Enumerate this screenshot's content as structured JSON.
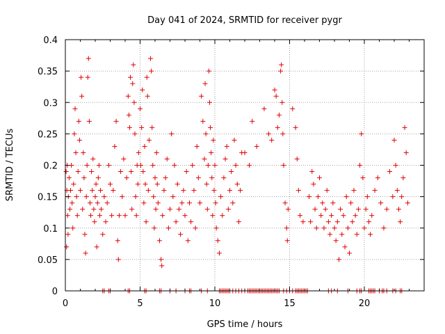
{
  "chart_data": {
    "type": "scatter",
    "title": "Day 041 of 2024, SRMTID for receiver pygr",
    "xlabel": "GPS time / hours",
    "ylabel": "SRMTID / TECUs",
    "xlim": [
      0,
      24
    ],
    "ylim": [
      0,
      0.4
    ],
    "grid": true,
    "marker": "+",
    "color": "#e00000",
    "x_ticks": [
      0,
      5,
      10,
      15,
      20
    ],
    "x_tick_labels": [
      "0",
      "5",
      "10",
      "15",
      "20"
    ],
    "y_ticks": [
      0,
      0.05,
      0.1,
      0.15,
      0.2,
      0.25,
      0.3,
      0.35,
      0.4
    ],
    "y_tick_labels": [
      "0",
      "0.05",
      "0.1",
      "0.15",
      "0.2",
      "0.25",
      "0.3",
      "0.35",
      "0.4"
    ],
    "series": [
      {
        "name": "SRMTID",
        "points": [
          [
            0.05,
            0.19
          ],
          [
            0.08,
            0.07
          ],
          [
            0.1,
            0.16
          ],
          [
            0.12,
            0.2
          ],
          [
            0.15,
            0.12
          ],
          [
            0.18,
            0.09
          ],
          [
            0.2,
            0.15
          ],
          [
            0.25,
            0.18
          ],
          [
            0.3,
            0.13
          ],
          [
            0.35,
            0.16
          ],
          [
            0.4,
            0.2
          ],
          [
            0.45,
            0.14
          ],
          [
            0.5,
            0.1
          ],
          [
            0.55,
            0.17
          ],
          [
            0.6,
            0.25
          ],
          [
            0.65,
            0.29
          ],
          [
            0.7,
            0.22
          ],
          [
            0.75,
            0.15
          ],
          [
            0.8,
            0.12
          ],
          [
            0.85,
            0.19
          ],
          [
            0.9,
            0.27
          ],
          [
            0.95,
            0.24
          ],
          [
            1.0,
            0.16
          ],
          [
            1.05,
            0.34
          ],
          [
            1.1,
            0.31
          ],
          [
            1.15,
            0.13
          ],
          [
            1.2,
            0.22
          ],
          [
            1.25,
            0.18
          ],
          [
            1.3,
            0.09
          ],
          [
            1.35,
            0.06
          ],
          [
            1.4,
            0.15
          ],
          [
            1.45,
            0.2
          ],
          [
            1.5,
            0.34
          ],
          [
            1.55,
            0.37
          ],
          [
            1.6,
            0.27
          ],
          [
            1.65,
            0.14
          ],
          [
            1.7,
            0.12
          ],
          [
            1.75,
            0.19
          ],
          [
            1.8,
            0.16
          ],
          [
            1.85,
            0.21
          ],
          [
            1.9,
            0.13
          ],
          [
            1.95,
            0.11
          ],
          [
            2.0,
            0.15
          ],
          [
            2.05,
            0.17
          ],
          [
            2.1,
            0.07
          ],
          [
            2.15,
            0.14
          ],
          [
            2.2,
            0.18
          ],
          [
            2.25,
            0.2
          ],
          [
            2.3,
            0.12
          ],
          [
            2.35,
            0.16
          ],
          [
            2.4,
            0.13
          ],
          [
            2.5,
            0.09
          ],
          [
            2.6,
            0.15
          ],
          [
            2.7,
            0.11
          ],
          [
            2.8,
            0.14
          ],
          [
            2.9,
            0.2
          ],
          [
            3.0,
            0.17
          ],
          [
            3.1,
            0.12
          ],
          [
            3.2,
            0.16
          ],
          [
            3.3,
            0.23
          ],
          [
            3.4,
            0.27
          ],
          [
            3.5,
            0.08
          ],
          [
            3.55,
            0.05
          ],
          [
            3.6,
            0.12
          ],
          [
            3.7,
            0.19
          ],
          [
            3.8,
            0.15
          ],
          [
            3.9,
            0.21
          ],
          [
            4.0,
            0.12
          ],
          [
            4.1,
            0.18
          ],
          [
            4.2,
            0.31
          ],
          [
            4.25,
            0.28
          ],
          [
            4.3,
            0.26
          ],
          [
            4.35,
            0.34
          ],
          [
            4.4,
            0.19
          ],
          [
            4.45,
            0.13
          ],
          [
            4.5,
            0.33
          ],
          [
            4.55,
            0.36
          ],
          [
            4.6,
            0.3
          ],
          [
            4.65,
            0.25
          ],
          [
            4.7,
            0.15
          ],
          [
            4.75,
            0.12
          ],
          [
            4.8,
            0.2
          ],
          [
            4.85,
            0.17
          ],
          [
            4.9,
            0.22
          ],
          [
            5.0,
            0.29
          ],
          [
            5.05,
            0.2
          ],
          [
            5.1,
            0.26
          ],
          [
            5.15,
            0.32
          ],
          [
            5.2,
            0.19
          ],
          [
            5.25,
            0.14
          ],
          [
            5.3,
            0.23
          ],
          [
            5.35,
            0.17
          ],
          [
            5.4,
            0.11
          ],
          [
            5.45,
            0.34
          ],
          [
            5.5,
            0.31
          ],
          [
            5.55,
            0.16
          ],
          [
            5.6,
            0.24
          ],
          [
            5.7,
            0.37
          ],
          [
            5.75,
            0.35
          ],
          [
            5.8,
            0.26
          ],
          [
            5.85,
            0.2
          ],
          [
            5.9,
            0.15
          ],
          [
            5.95,
            0.1
          ],
          [
            6.0,
            0.18
          ],
          [
            6.05,
            0.13
          ],
          [
            6.1,
            0.22
          ],
          [
            6.15,
            0.17
          ],
          [
            6.2,
            0.14
          ],
          [
            6.3,
            0.08
          ],
          [
            6.4,
            0.05
          ],
          [
            6.45,
            0.04
          ],
          [
            6.5,
            0.12
          ],
          [
            6.6,
            0.16
          ],
          [
            6.7,
            0.18
          ],
          [
            6.8,
            0.21
          ],
          [
            6.9,
            0.1
          ],
          [
            7.0,
            0.13
          ],
          [
            7.1,
            0.25
          ],
          [
            7.2,
            0.15
          ],
          [
            7.3,
            0.2
          ],
          [
            7.4,
            0.11
          ],
          [
            7.5,
            0.17
          ],
          [
            7.6,
            0.13
          ],
          [
            7.7,
            0.09
          ],
          [
            7.8,
            0.14
          ],
          [
            7.9,
            0.16
          ],
          [
            8.0,
            0.12
          ],
          [
            8.1,
            0.19
          ],
          [
            8.2,
            0.08
          ],
          [
            8.3,
            0.14
          ],
          [
            8.4,
            0.11
          ],
          [
            8.5,
            0.2
          ],
          [
            8.6,
            0.16
          ],
          [
            8.7,
            0.1
          ],
          [
            8.8,
            0.23
          ],
          [
            8.9,
            0.18
          ],
          [
            9.0,
            0.14
          ],
          [
            9.1,
            0.31
          ],
          [
            9.2,
            0.27
          ],
          [
            9.3,
            0.21
          ],
          [
            9.35,
            0.33
          ],
          [
            9.4,
            0.25
          ],
          [
            9.45,
            0.17
          ],
          [
            9.5,
            0.13
          ],
          [
            9.55,
            0.2
          ],
          [
            9.6,
            0.35
          ],
          [
            9.65,
            0.3
          ],
          [
            9.7,
            0.26
          ],
          [
            9.75,
            0.22
          ],
          [
            9.8,
            0.18
          ],
          [
            9.85,
            0.12
          ],
          [
            9.9,
            0.24
          ],
          [
            9.95,
            0.16
          ],
          [
            10.0,
            0.2
          ],
          [
            10.05,
            0.14
          ],
          [
            10.1,
            0.1
          ],
          [
            10.2,
            0.08
          ],
          [
            10.3,
            0.06
          ],
          [
            10.4,
            0.15
          ],
          [
            10.5,
            0.12
          ],
          [
            10.6,
            0.18
          ],
          [
            10.7,
            0.21
          ],
          [
            10.8,
            0.23
          ],
          [
            10.9,
            0.13
          ],
          [
            11.0,
            0.16
          ],
          [
            11.1,
            0.19
          ],
          [
            11.2,
            0.14
          ],
          [
            11.3,
            0.24
          ],
          [
            11.4,
            0.2
          ],
          [
            11.5,
            0.17
          ],
          [
            11.6,
            0.11
          ],
          [
            11.7,
            0.16
          ],
          [
            11.8,
            0.22
          ],
          [
            12.0,
            0.22
          ],
          [
            12.3,
            0.2
          ],
          [
            12.5,
            0.27
          ],
          [
            12.8,
            0.23
          ],
          [
            13.3,
            0.29
          ],
          [
            13.6,
            0.25
          ],
          [
            13.8,
            0.24
          ],
          [
            14.0,
            0.32
          ],
          [
            14.1,
            0.31
          ],
          [
            14.2,
            0.26
          ],
          [
            14.3,
            0.28
          ],
          [
            14.4,
            0.35
          ],
          [
            14.45,
            0.36
          ],
          [
            14.5,
            0.3
          ],
          [
            14.55,
            0.25
          ],
          [
            14.6,
            0.2
          ],
          [
            14.7,
            0.14
          ],
          [
            14.8,
            0.1
          ],
          [
            14.85,
            0.08
          ],
          [
            14.9,
            0.13
          ],
          [
            15.2,
            0.29
          ],
          [
            15.4,
            0.26
          ],
          [
            15.5,
            0.21
          ],
          [
            15.6,
            0.16
          ],
          [
            15.7,
            0.12
          ],
          [
            15.9,
            0.11
          ],
          [
            16.3,
            0.15
          ],
          [
            16.4,
            0.11
          ],
          [
            16.5,
            0.19
          ],
          [
            16.6,
            0.17
          ],
          [
            16.7,
            0.13
          ],
          [
            16.8,
            0.1
          ],
          [
            16.9,
            0.15
          ],
          [
            17.0,
            0.18
          ],
          [
            17.1,
            0.12
          ],
          [
            17.2,
            0.14
          ],
          [
            17.3,
            0.1
          ],
          [
            17.4,
            0.13
          ],
          [
            17.5,
            0.16
          ],
          [
            17.6,
            0.11
          ],
          [
            17.7,
            0.09
          ],
          [
            17.8,
            0.12
          ],
          [
            17.9,
            0.14
          ],
          [
            18.0,
            0.1
          ],
          [
            18.1,
            0.08
          ],
          [
            18.2,
            0.11
          ],
          [
            18.3,
            0.05
          ],
          [
            18.4,
            0.13
          ],
          [
            18.5,
            0.09
          ],
          [
            18.6,
            0.12
          ],
          [
            18.7,
            0.07
          ],
          [
            18.8,
            0.15
          ],
          [
            18.9,
            0.1
          ],
          [
            19.0,
            0.06
          ],
          [
            19.1,
            0.14
          ],
          [
            19.2,
            0.11
          ],
          [
            19.3,
            0.16
          ],
          [
            19.4,
            0.12
          ],
          [
            19.5,
            0.09
          ],
          [
            19.6,
            0.13
          ],
          [
            19.7,
            0.2
          ],
          [
            19.8,
            0.25
          ],
          [
            19.9,
            0.18
          ],
          [
            20.0,
            0.1
          ],
          [
            20.1,
            0.13
          ],
          [
            20.2,
            0.15
          ],
          [
            20.3,
            0.11
          ],
          [
            20.4,
            0.09
          ],
          [
            20.5,
            0.12
          ],
          [
            20.7,
            0.16
          ],
          [
            20.9,
            0.18
          ],
          [
            21.1,
            0.14
          ],
          [
            21.3,
            0.1
          ],
          [
            21.5,
            0.13
          ],
          [
            21.7,
            0.19
          ],
          [
            21.9,
            0.15
          ],
          [
            22.0,
            0.24
          ],
          [
            22.1,
            0.2
          ],
          [
            22.2,
            0.16
          ],
          [
            22.3,
            0.13
          ],
          [
            22.4,
            0.11
          ],
          [
            22.5,
            0.15
          ],
          [
            22.6,
            0.18
          ],
          [
            22.7,
            0.26
          ],
          [
            22.8,
            0.22
          ],
          [
            22.9,
            0.14
          ]
        ]
      }
    ],
    "zero_markers": [
      2.5,
      2.6,
      2.9,
      3.0,
      4.2,
      4.3,
      5.3,
      5.4,
      6.3,
      6.4,
      7.0,
      7.4,
      8.0,
      8.3,
      8.4,
      9.1,
      9.5,
      10.3,
      10.4,
      10.5,
      10.6,
      10.7,
      10.8,
      10.9,
      11.0,
      11.2,
      11.4,
      11.6,
      11.8,
      12.0,
      12.2,
      12.3,
      12.4,
      12.5,
      12.6,
      12.7,
      12.8,
      12.9,
      13.0,
      13.1,
      13.2,
      13.3,
      13.4,
      13.5,
      13.6,
      13.7,
      13.8,
      13.9,
      14.0,
      14.1,
      14.2,
      14.3,
      14.6,
      14.8,
      15.0,
      15.2,
      15.4,
      15.5,
      15.6,
      15.7,
      15.8,
      15.9,
      16.0,
      16.1,
      16.2,
      17.6,
      17.8,
      18.2,
      18.9,
      19.5,
      19.7,
      19.8,
      20.3,
      20.4,
      20.5,
      20.6,
      20.7,
      21.0,
      21.2,
      21.3,
      21.5,
      21.9,
      22.1,
      22.4,
      22.5
    ]
  }
}
